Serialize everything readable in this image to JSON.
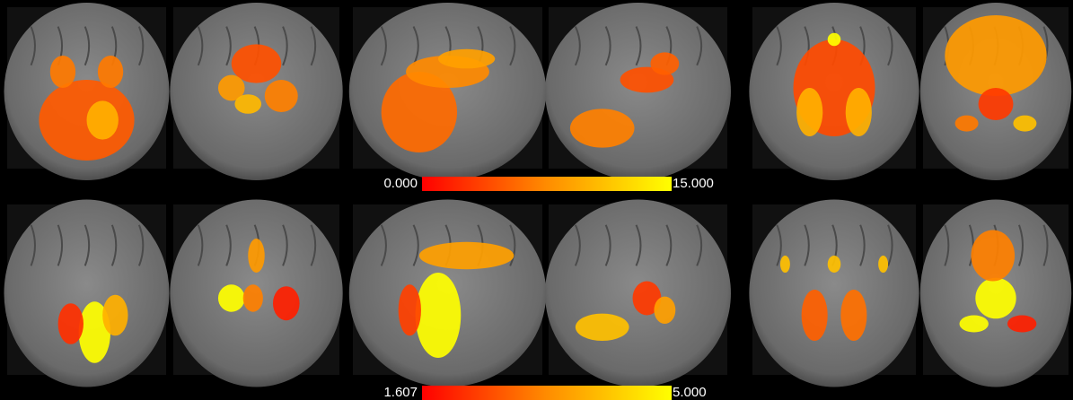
{
  "figure": {
    "rows": [
      {
        "colorbar": {
          "min_label": "0.000",
          "max_label": "15.000"
        }
      },
      {
        "colorbar": {
          "min_label": "1.607",
          "max_label": "5.000"
        }
      }
    ]
  }
}
